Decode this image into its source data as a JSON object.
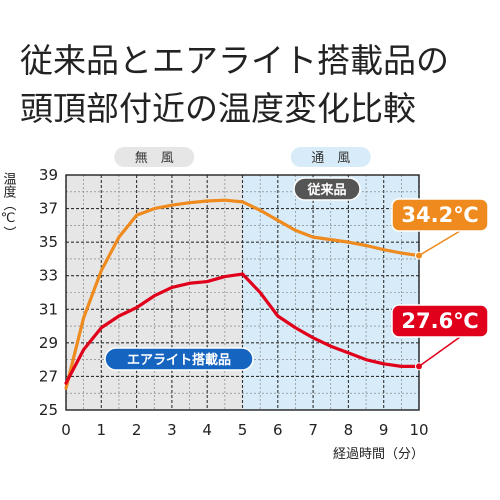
{
  "page": {
    "title_line1": "従来品とエアライト搭載品の",
    "title_line2": "頭頂部付近の温度変化比較"
  },
  "chart_data": {
    "type": "line",
    "xlabel": "経過時間（分）",
    "ylabel": "温度（℃）",
    "xlim": [
      0,
      10
    ],
    "ylim": [
      25,
      39
    ],
    "xticks": [
      0,
      1,
      2,
      3,
      4,
      5,
      6,
      7,
      8,
      9,
      10
    ],
    "yticks": [
      25,
      27,
      29,
      31,
      33,
      35,
      37,
      39
    ],
    "grid": true,
    "zones": [
      {
        "label": "無　風",
        "from": 0,
        "to": 5,
        "color": "#e6e6e6"
      },
      {
        "label": "通　風",
        "from": 5,
        "to": 10,
        "color": "#d7ecf8"
      }
    ],
    "series": [
      {
        "name": "従来品",
        "color": "#ef8a1e",
        "label_color": "#555555",
        "end_value_label": "34.2℃",
        "x": [
          0,
          0.5,
          1,
          1.5,
          2,
          2.5,
          3,
          3.5,
          4,
          4.5,
          5,
          5.5,
          6,
          6.5,
          7,
          7.5,
          8,
          8.5,
          9,
          9.5,
          10
        ],
        "y": [
          26.3,
          30.5,
          33.3,
          35.3,
          36.6,
          37.0,
          37.2,
          37.35,
          37.45,
          37.5,
          37.4,
          36.9,
          36.3,
          35.7,
          35.3,
          35.15,
          35.0,
          34.8,
          34.55,
          34.35,
          34.2
        ]
      },
      {
        "name": "エアライト搭載品",
        "color": "#e0001b",
        "label_color": "#1565c0",
        "end_value_label": "27.6℃",
        "x": [
          0,
          0.5,
          1,
          1.5,
          2,
          2.5,
          3,
          3.5,
          4,
          4.5,
          5,
          5.5,
          6,
          6.5,
          7,
          7.5,
          8,
          8.5,
          9,
          9.5,
          10
        ],
        "y": [
          26.6,
          28.6,
          29.9,
          30.6,
          31.1,
          31.8,
          32.3,
          32.55,
          32.65,
          32.95,
          33.1,
          32.0,
          30.6,
          29.9,
          29.3,
          28.8,
          28.4,
          28.0,
          27.75,
          27.6,
          27.6
        ]
      }
    ]
  }
}
